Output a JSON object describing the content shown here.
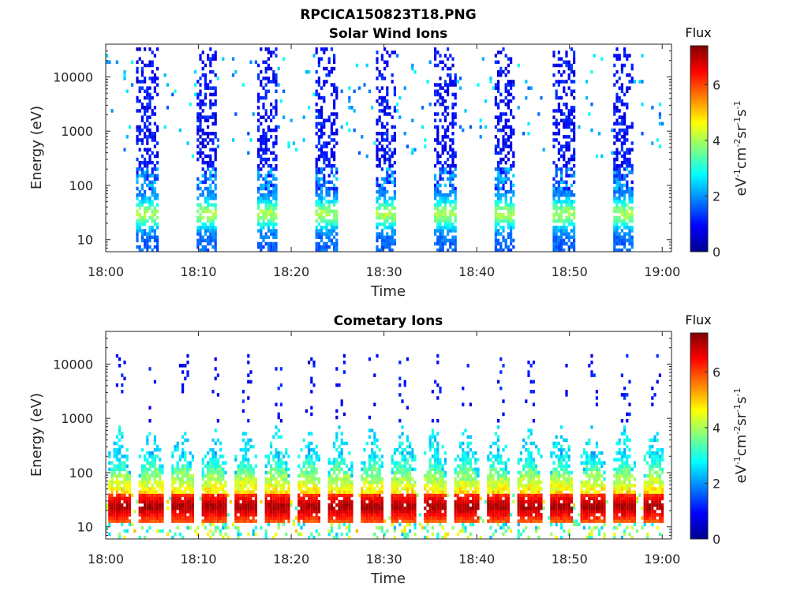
{
  "figure_title": "RPCICA150823T18.PNG",
  "chart_data": [
    {
      "type": "heatmap",
      "title": "Solar Wind Ions",
      "xlabel": "Time",
      "ylabel": "Energy (eV)",
      "x_tick_labels": [
        "18:00",
        "18:10",
        "18:20",
        "18:30",
        "18:40",
        "18:50",
        "19:00"
      ],
      "y_tick_labels": [
        "10",
        "100",
        "1000",
        "10000"
      ],
      "y_scale": "log",
      "ylim": [
        6,
        40000
      ],
      "colorbar": {
        "label": "Flux",
        "unit": "eV-1cm-2sr-1s-1",
        "ticks": [
          "0",
          "2",
          "4",
          "6"
        ],
        "range": [
          0,
          7.4
        ],
        "colormap": "jet"
      },
      "burst_start_minutes": [
        3.3,
        9.7,
        16.2,
        22.6,
        29.0,
        35.4,
        41.8,
        48.2,
        54.6
      ],
      "burst_duration_minutes": 2.4,
      "peak_energy_eV": 30,
      "peak_flux": 3.6
    },
    {
      "type": "heatmap",
      "title": "Cometary Ions",
      "xlabel": "Time",
      "ylabel": "Energy (eV)",
      "x_tick_labels": [
        "18:00",
        "18:10",
        "18:20",
        "18:30",
        "18:40",
        "18:50",
        "19:00"
      ],
      "y_tick_labels": [
        "10",
        "100",
        "1000",
        "10000"
      ],
      "y_scale": "log",
      "ylim": [
        6,
        40000
      ],
      "colorbar": {
        "label": "Flux",
        "unit": "eV-1cm-2sr-1s-1",
        "ticks": [
          "0",
          "2",
          "4",
          "6"
        ],
        "range": [
          0,
          7.4
        ],
        "colormap": "jet"
      },
      "burst_start_minutes": [
        0.2,
        3.6,
        7.0,
        10.4,
        13.8,
        17.2,
        20.6,
        24.0,
        27.4,
        30.8,
        34.2,
        37.6,
        41.0,
        44.4,
        47.8,
        51.2,
        54.6,
        58.0
      ],
      "burst_duration_minutes": 2.6,
      "peak_energy_eV": 30,
      "peak_flux": 6.8
    }
  ]
}
